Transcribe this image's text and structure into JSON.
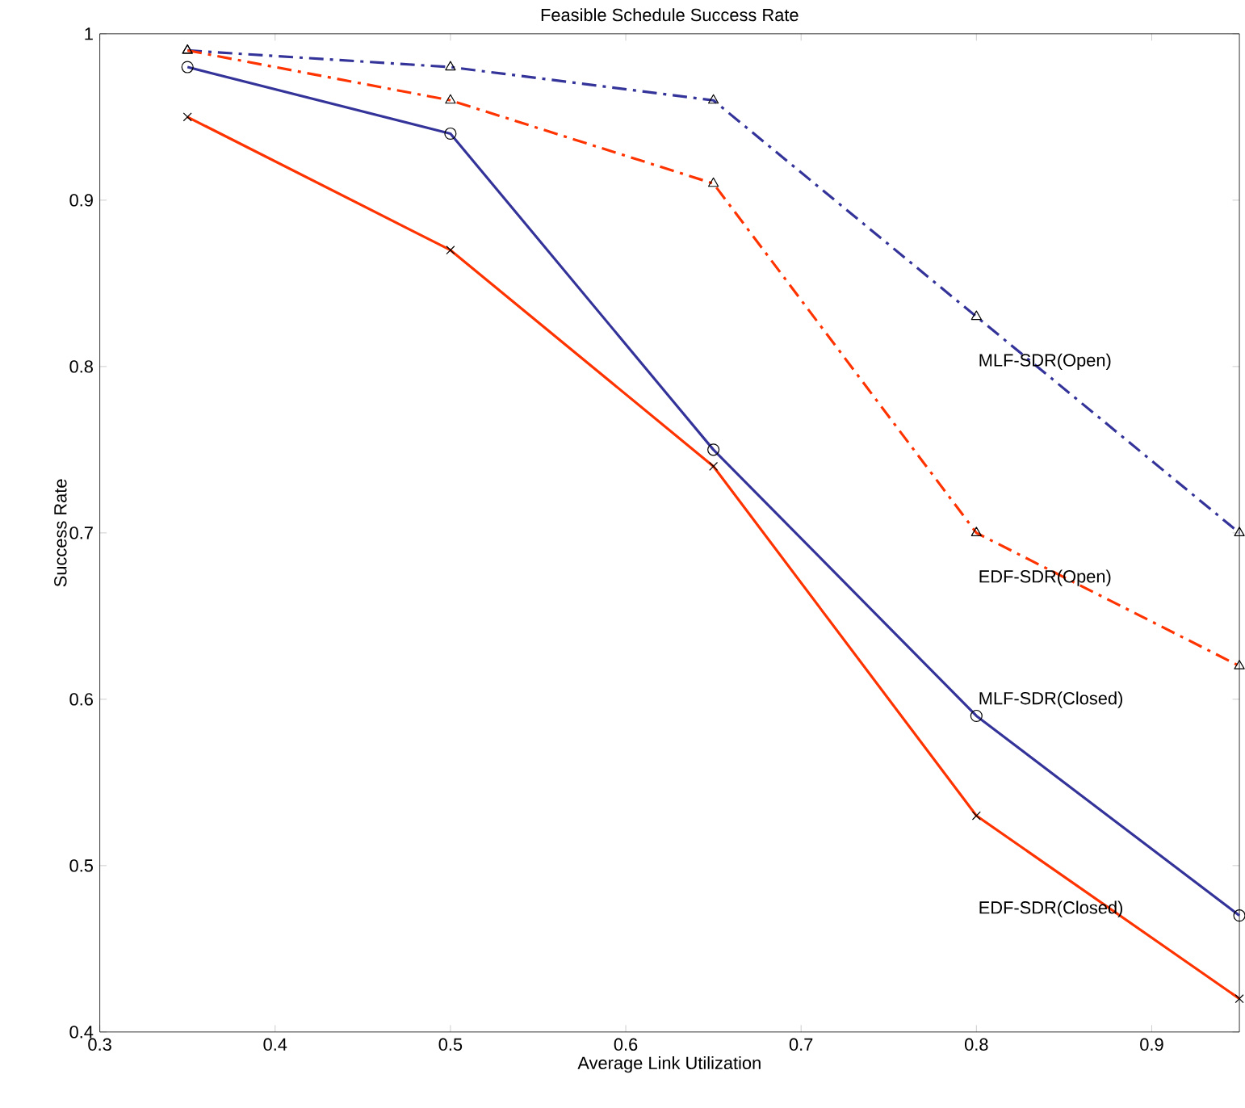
{
  "chart_data": {
    "type": "line",
    "title": "Feasible Schedule Success Rate",
    "xlabel": "Average Link Utilization",
    "ylabel": "Success Rate",
    "x": [
      0.35,
      0.5,
      0.65,
      0.8,
      0.95
    ],
    "series": [
      {
        "name": "MLF-SDR(Open)",
        "color": "#333399",
        "values": [
          0.99,
          0.98,
          0.96,
          0.83,
          0.7
        ],
        "line_style": "dashed",
        "marker": "triangle"
      },
      {
        "name": "EDF-SDR(Open)",
        "color": "#ff3300",
        "values": [
          0.99,
          0.96,
          0.91,
          0.7,
          0.62
        ],
        "line_style": "dashed",
        "marker": "triangle"
      },
      {
        "name": "MLF-SDR(Closed)",
        "color": "#333399",
        "values": [
          0.98,
          0.94,
          0.75,
          0.59,
          0.47
        ],
        "line_style": "solid",
        "marker": "circle"
      },
      {
        "name": "EDF-SDR(Closed)",
        "color": "#ff3300",
        "values": [
          0.95,
          0.87,
          0.74,
          0.53,
          0.42
        ],
        "line_style": "solid",
        "marker": "cross"
      }
    ],
    "xlim": [
      0.3,
      0.95
    ],
    "ylim": [
      0.4,
      1
    ],
    "xticks": [
      0.3,
      0.4,
      0.5,
      0.6,
      0.7,
      0.8,
      0.9
    ],
    "yticks": [
      0.4,
      0.5,
      0.6,
      0.7,
      0.8,
      0.9,
      1
    ],
    "grid": false,
    "legend": false
  }
}
